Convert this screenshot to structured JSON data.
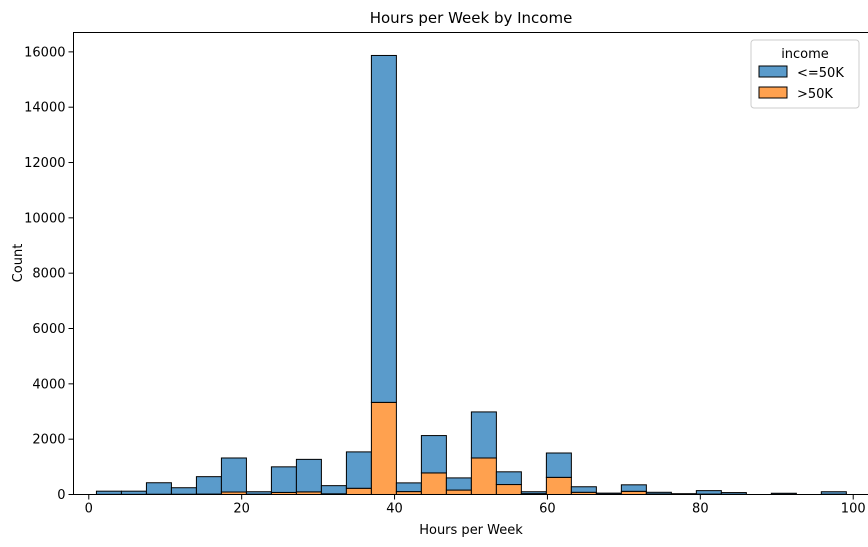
{
  "chart_data": {
    "type": "bar",
    "stacked": true,
    "title": "Hours per Week by Income",
    "xlabel": "Hours per Week",
    "ylabel": "Count",
    "xlim": [
      -2,
      102
    ],
    "ylim": [
      0,
      16700
    ],
    "xticks": [
      0,
      20,
      40,
      60,
      80,
      100
    ],
    "yticks": [
      0,
      2000,
      4000,
      6000,
      8000,
      10000,
      12000,
      14000,
      16000
    ],
    "grid": false,
    "bin_width": 3.27,
    "bin_start": 1,
    "legend": {
      "title": "income",
      "placement": "top-right",
      "entries": [
        "<=50K",
        ">50K"
      ]
    },
    "series": [
      {
        "name": ">50K",
        "color": "#ff7f0e",
        "values": [
          5,
          5,
          10,
          10,
          15,
          90,
          10,
          75,
          95,
          25,
          225,
          3330,
          105,
          780,
          160,
          1320,
          360,
          30,
          620,
          80,
          10,
          115,
          20,
          5,
          15,
          10,
          0,
          5,
          0,
          10
        ]
      },
      {
        "name": "<=50K",
        "color": "#1f77b4",
        "values": [
          115,
          115,
          415,
          235,
          630,
          1230,
          90,
          925,
          1175,
          295,
          1315,
          12540,
          315,
          1350,
          440,
          1665,
          460,
          70,
          880,
          200,
          40,
          235,
          60,
          25,
          125,
          60,
          0,
          40,
          0,
          90
        ]
      }
    ]
  }
}
